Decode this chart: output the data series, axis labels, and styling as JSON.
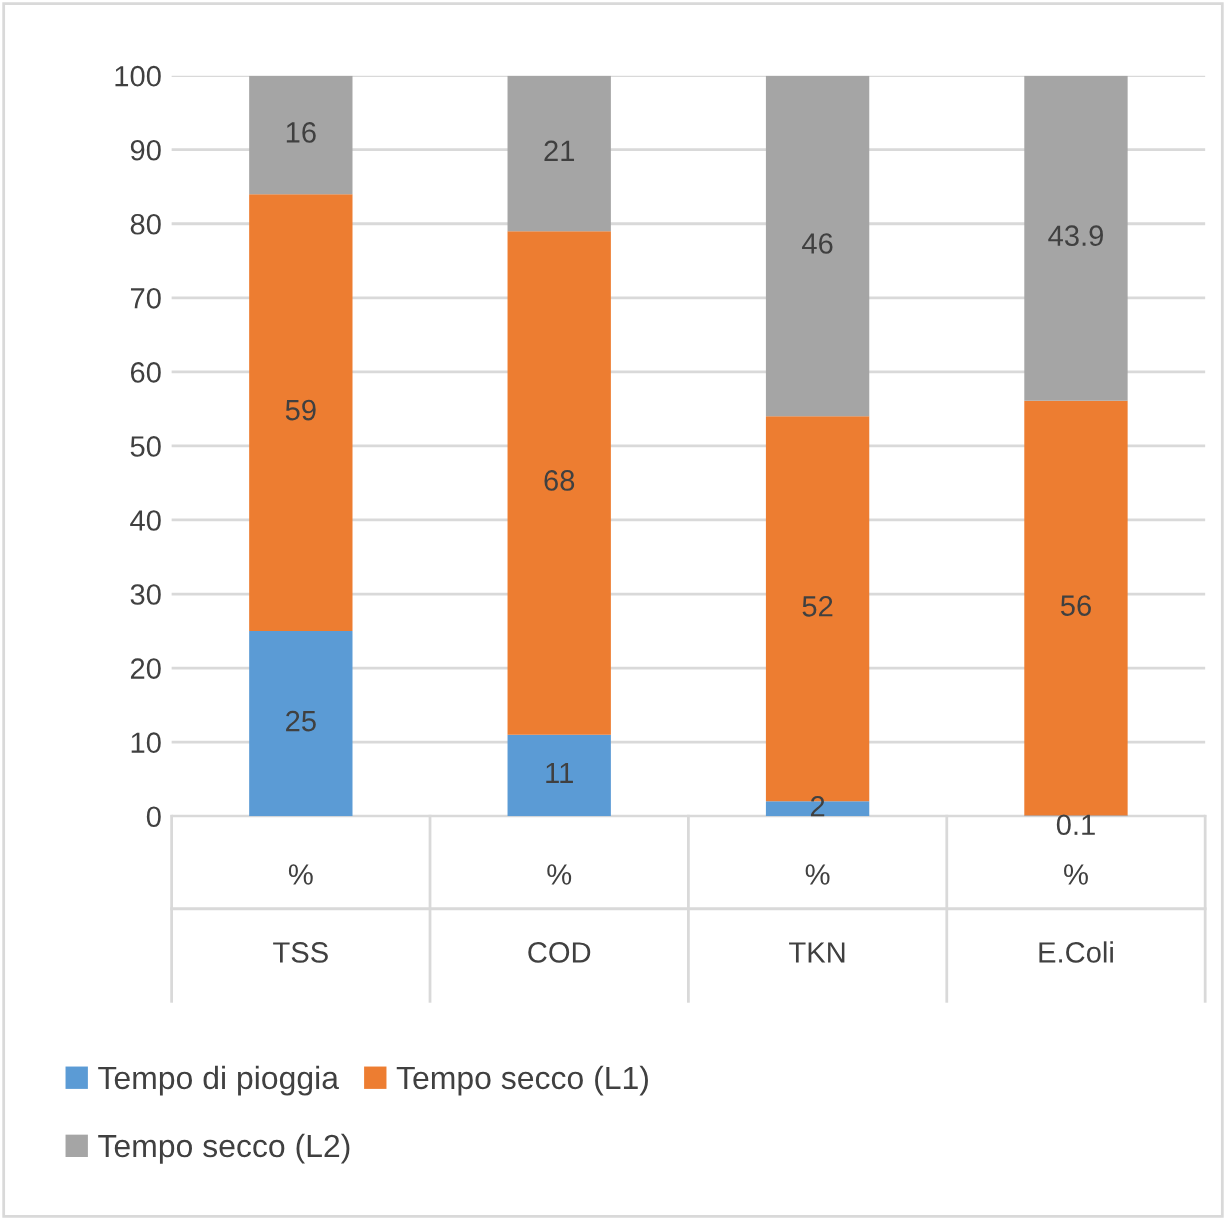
{
  "chart_data": {
    "type": "bar",
    "stacked": true,
    "categories": [
      "%\nTSS",
      "%\nCOD",
      "%\nTKN",
      "%\nE.Coli"
    ],
    "series": [
      {
        "name": "Tempo di pioggia",
        "color": "#5b9bd5",
        "values": [
          25,
          11,
          2,
          0.1
        ]
      },
      {
        "name": "Tempo secco (L1)",
        "color": "#ed7d31",
        "values": [
          59,
          68,
          52,
          56
        ]
      },
      {
        "name": "Tempo secco (L2)",
        "color": "#a5a5a5",
        "values": [
          16,
          21,
          46,
          43.9
        ]
      }
    ],
    "ylim": [
      0,
      100
    ],
    "yticks": [
      0,
      10,
      20,
      30,
      40,
      50,
      60,
      70,
      80,
      90,
      100
    ],
    "grid": "y",
    "legend": "bottom",
    "data_labels": true
  }
}
